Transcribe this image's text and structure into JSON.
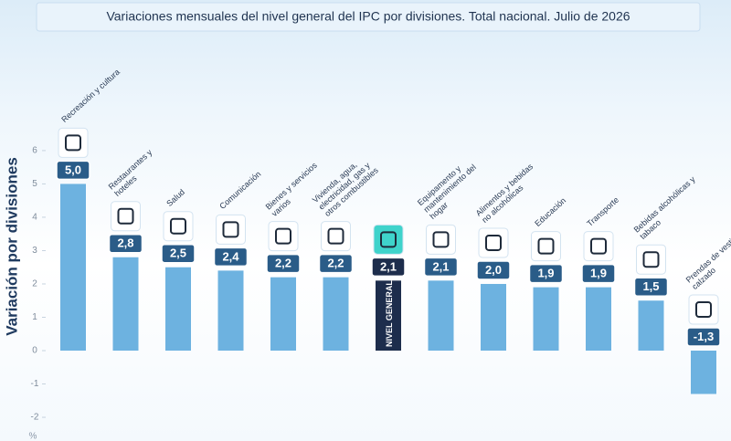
{
  "chart_data": {
    "type": "bar",
    "title": "Variaciones mensuales del nivel general del IPC por divisiones. Total nacional. Julio de 2026",
    "y_label": "Variación por divisiones",
    "y_unit": "%",
    "categories": [
      "Recreación y cultura",
      "Restaurantes y hoteles",
      "Salud",
      "Comunicación",
      "Bienes y servicios varios",
      "Vivienda, agua, electricidad, gas y otros combustibles",
      "NIVEL GENERAL",
      "Equipamento y mantenimiento del hogar",
      "Alimentos y bebidas no alcohólicas",
      "Educación",
      "Transporte",
      "Bebidas alcohólicas y tabaco",
      "Prendas de vestido y calzado"
    ],
    "values": [
      5.0,
      2.8,
      2.5,
      2.4,
      2.2,
      2.2,
      2.1,
      2.1,
      2.0,
      1.9,
      1.9,
      1.5,
      -1.3
    ],
    "value_labels": [
      "5,0",
      "2,8",
      "2,5",
      "2,4",
      "2,2",
      "2,2",
      "2,1",
      "2,1",
      "2,0",
      "1,9",
      "1,9",
      "1,5",
      "-1,3"
    ],
    "color": "#6db2e0",
    "highlight_index": 6,
    "highlight_color": "#1d2d4c",
    "highlight_icon_color": "#3fd3cb",
    "label_color": "#2a5c88",
    "ylim": [
      -2.3,
      6.6
    ],
    "yticks": [
      -2,
      -1,
      0,
      1,
      2,
      3,
      4,
      5,
      6
    ]
  }
}
